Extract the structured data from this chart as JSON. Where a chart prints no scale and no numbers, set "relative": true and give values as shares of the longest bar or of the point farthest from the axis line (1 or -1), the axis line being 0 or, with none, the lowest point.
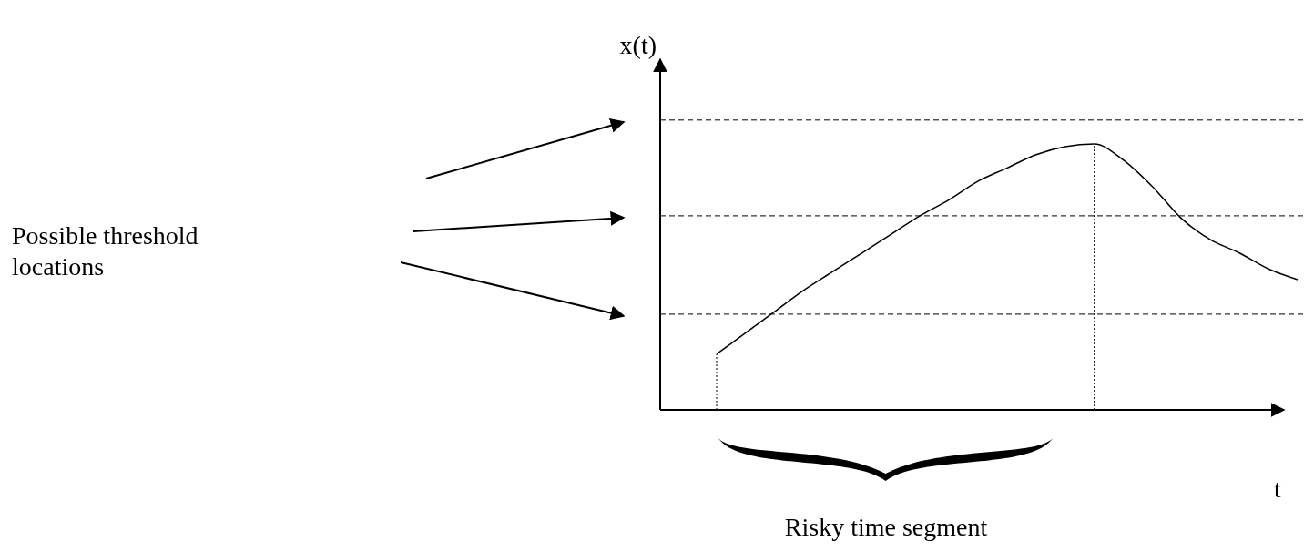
{
  "chart_data": {
    "type": "line",
    "relative": true,
    "xlabel": "t",
    "ylabel": "x(t)",
    "line_style": "solid",
    "categories": [
      null,
      null,
      null,
      null,
      null,
      null,
      null,
      null,
      null,
      null,
      null,
      null,
      null,
      null,
      null,
      null,
      null,
      null,
      null,
      null,
      null
    ],
    "series": [
      {
        "color": "#000000",
        "values": [
          0.21,
          0.29,
          0.37,
          0.45,
          0.52,
          0.59,
          0.66,
          0.73,
          0.79,
          0.86,
          0.91,
          0.96,
          0.99,
          1,
          0.94,
          0.84,
          0.72,
          0.64,
          0.59,
          0.53,
          0.49
        ]
      }
    ],
    "ref_lines": [
      {
        "axis": "y",
        "value": 1.09,
        "line_style": "dashed",
        "color": "#000000"
      },
      {
        "axis": "y",
        "value": 0.73,
        "line_style": "dashed",
        "color": "#000000"
      },
      {
        "axis": "y",
        "value": 0.36,
        "line_style": "dashed",
        "color": "#000000"
      }
    ],
    "annotations": [
      "Possible threshold locations",
      "Risky time segment"
    ]
  }
}
